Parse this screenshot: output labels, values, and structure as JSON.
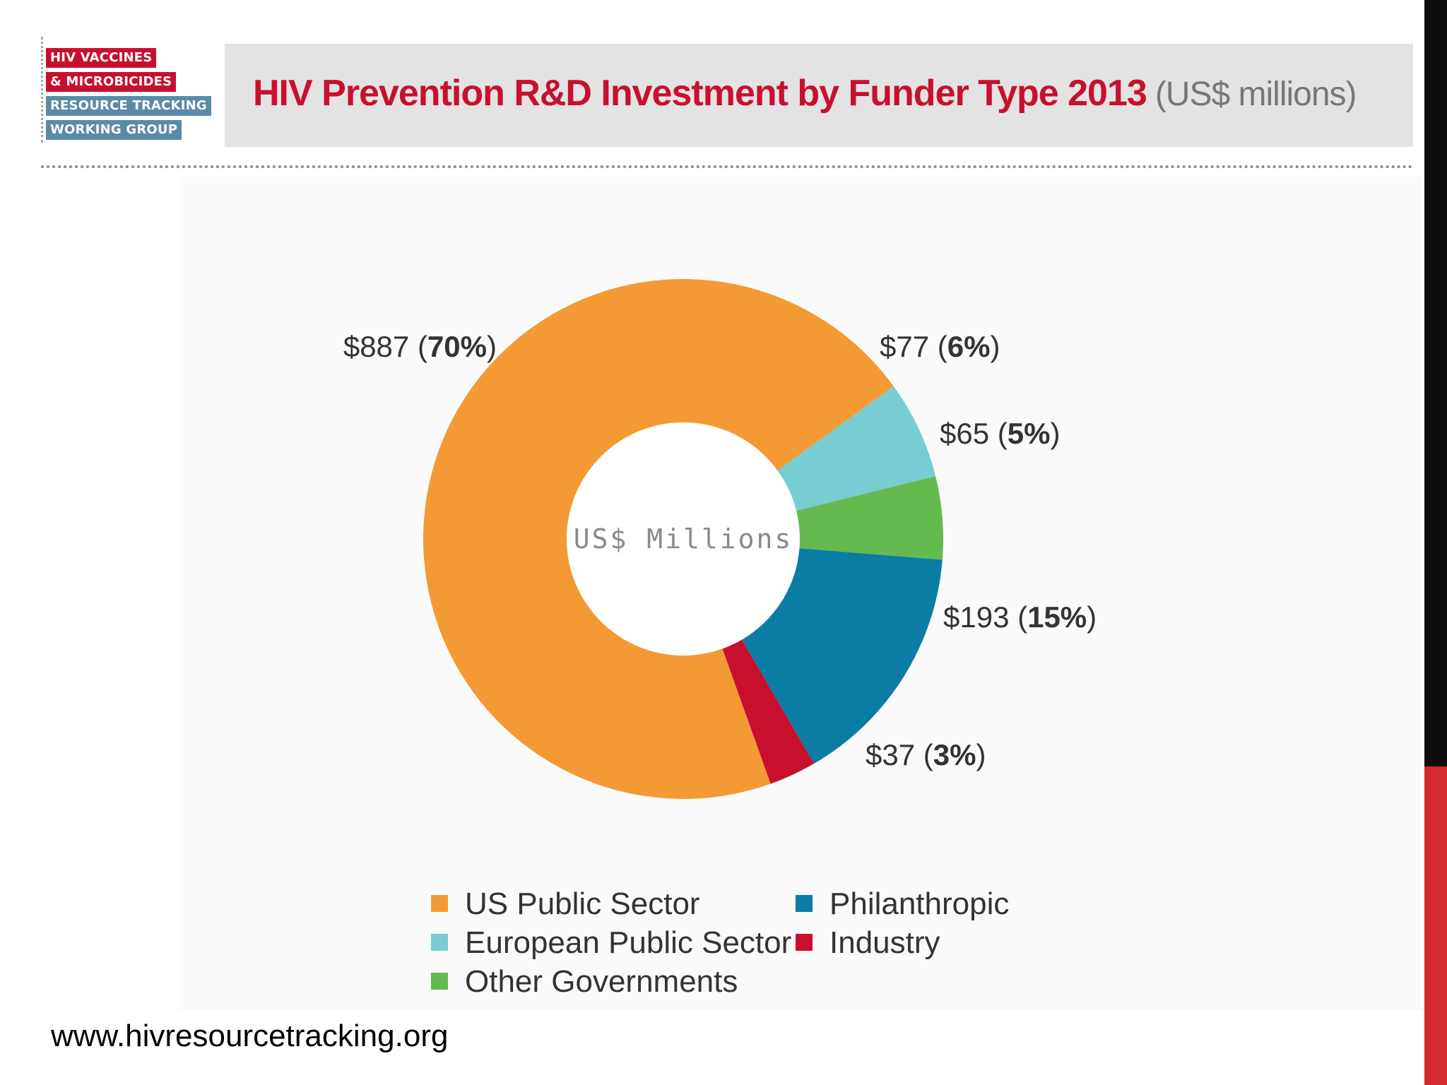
{
  "logo": {
    "line1": "HIV VACCINES",
    "line2": "& MICROBICIDES",
    "line3": "RESOURCE TRACKING",
    "line4": "WORKING GROUP"
  },
  "header": {
    "title": "HIV Prevention R&D Investment by Funder Type 2013",
    "unit": "(US$ millions)"
  },
  "colors": {
    "us_public": "#f39a34",
    "european_public": "#77cdd1",
    "other_gov": "#64b94f",
    "philanthropic": "#0b7ca3",
    "industry": "#c8102e",
    "title_red": "#c8102e"
  },
  "chart_data": {
    "type": "pie",
    "donut": true,
    "title": "HIV Prevention R&D Investment by Funder Type 2013 (US$ millions)",
    "center_label": "US$ Millions",
    "legend_position": "bottom",
    "slices": [
      {
        "name": "European Public Sector",
        "value": 77,
        "percent": 6,
        "value_label": "$77",
        "pct_label": "6%",
        "color": "#77cdd1"
      },
      {
        "name": "Other Governments",
        "value": 65,
        "percent": 5,
        "value_label": "$65",
        "pct_label": "5%",
        "color": "#64b94f"
      },
      {
        "name": "Philanthropic",
        "value": 193,
        "percent": 15,
        "value_label": "$193",
        "pct_label": "15%",
        "color": "#0b7ca3"
      },
      {
        "name": "Industry",
        "value": 37,
        "percent": 3,
        "value_label": "$37",
        "pct_label": "3%",
        "color": "#c8102e"
      },
      {
        "name": "US Public Sector",
        "value": 887,
        "percent": 70,
        "value_label": "$887",
        "pct_label": "70%",
        "color": "#f39a34"
      }
    ]
  },
  "legend": {
    "items": [
      {
        "label": "US Public Sector",
        "color": "#f39a34"
      },
      {
        "label": "European Public Sector",
        "color": "#77cdd1"
      },
      {
        "label": "Other Governments",
        "color": "#64b94f"
      },
      {
        "label": "Philanthropic",
        "color": "#0b7ca3"
      },
      {
        "label": "Industry",
        "color": "#c8102e"
      }
    ]
  },
  "footer": {
    "url": "www.hivresourcetracking.org"
  }
}
